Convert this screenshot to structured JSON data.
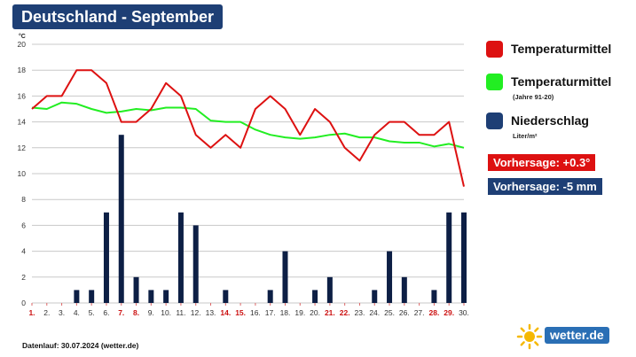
{
  "title": "Deutschland - September",
  "unit": "°C",
  "legend": [
    {
      "label": "Temperaturmittel",
      "sub": "",
      "color": "#dd1111"
    },
    {
      "label": "Temperaturmittel",
      "sub": "(Jahre 91-20)",
      "color": "#22ee22"
    },
    {
      "label": "Niederschlag",
      "sub": "Liter/m²",
      "color": "#1e3f75"
    }
  ],
  "forecast": {
    "temp": {
      "label": "Vorhersage: +0.3°",
      "color": "#dd1111"
    },
    "rain": {
      "label": "Vorhersage: -5 mm",
      "color": "#1e3f75"
    }
  },
  "footnote": "Datenlauf: 30.07.2024 (wetter.de)",
  "logo": "wetter.de",
  "chart_data": {
    "type": "bar",
    "x": [
      "1.",
      "2.",
      "3.",
      "4.",
      "5.",
      "6.",
      "7.",
      "8.",
      "9.",
      "10.",
      "11.",
      "12.",
      "13.",
      "14.",
      "15.",
      "16.",
      "17.",
      "18.",
      "19.",
      "20.",
      "21.",
      "22.",
      "23.",
      "24.",
      "25.",
      "26.",
      "27.",
      "28.",
      "29.",
      "30."
    ],
    "weekend_days": [
      "1.",
      "7.",
      "8.",
      "14.",
      "15.",
      "21.",
      "22.",
      "28.",
      "29."
    ],
    "ylim": [
      0,
      20
    ],
    "yticks": [
      0,
      2,
      4,
      6,
      8,
      10,
      12,
      14,
      16,
      18,
      20
    ],
    "grid": true,
    "series": [
      {
        "name": "Temperaturmittel",
        "type": "line",
        "color": "#dd1111",
        "values": [
          15,
          16,
          16,
          18,
          18,
          17,
          14,
          14,
          15,
          17,
          16,
          13,
          12,
          13,
          12,
          15,
          16,
          15,
          13,
          15,
          14,
          12,
          11,
          13,
          14,
          14,
          13,
          13,
          14,
          9
        ]
      },
      {
        "name": "Temperaturmittel (Jahre 91-20)",
        "type": "line",
        "color": "#22ee22",
        "values": [
          15.1,
          15.0,
          15.5,
          15.4,
          15.0,
          14.7,
          14.8,
          15.0,
          14.9,
          15.1,
          15.1,
          15.0,
          14.1,
          14.0,
          14.0,
          13.4,
          13.0,
          12.8,
          12.7,
          12.8,
          13.0,
          13.1,
          12.8,
          12.8,
          12.5,
          12.4,
          12.4,
          12.1,
          12.3,
          12.0
        ]
      },
      {
        "name": "Niederschlag",
        "type": "bar",
        "color": "#0d1f45",
        "values": [
          0,
          0,
          0,
          1,
          1,
          7,
          13,
          2,
          1,
          1,
          7,
          6,
          0,
          1,
          0,
          0,
          1,
          4,
          0,
          1,
          2,
          0,
          0,
          1,
          4,
          2,
          0,
          1,
          7,
          7
        ]
      }
    ]
  }
}
